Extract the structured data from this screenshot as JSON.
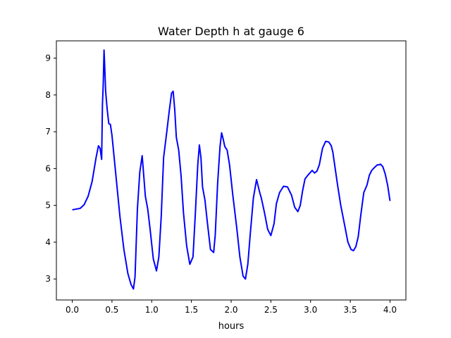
{
  "chart_data": {
    "type": "line",
    "title": "Water Depth h at gauge 6",
    "xlabel": "hours",
    "ylabel": "",
    "xlim": [
      -0.2,
      4.2
    ],
    "ylim": [
      2.43,
      9.47
    ],
    "grid": false,
    "legend": "none",
    "x_ticks": [
      0.0,
      0.5,
      1.0,
      1.5,
      2.0,
      2.5,
      3.0,
      3.5,
      4.0
    ],
    "x_tick_labels": [
      "0.0",
      "0.5",
      "1.0",
      "1.5",
      "2.0",
      "2.5",
      "3.0",
      "3.5",
      "4.0"
    ],
    "y_ticks": [
      3,
      4,
      5,
      6,
      7,
      8,
      9
    ],
    "y_tick_labels": [
      "3",
      "4",
      "5",
      "6",
      "7",
      "8",
      "9"
    ],
    "series": [
      {
        "color": "#0000ff",
        "x": [
          0.0,
          0.1,
          0.15,
          0.2,
          0.25,
          0.3,
          0.33,
          0.35,
          0.37,
          0.38,
          0.39,
          0.4,
          0.41,
          0.42,
          0.44,
          0.46,
          0.48,
          0.5,
          0.55,
          0.6,
          0.65,
          0.7,
          0.74,
          0.77,
          0.79,
          0.82,
          0.85,
          0.88,
          0.9,
          0.92,
          0.95,
          0.98,
          1.02,
          1.06,
          1.09,
          1.12,
          1.15,
          1.19,
          1.22,
          1.25,
          1.27,
          1.29,
          1.31,
          1.34,
          1.37,
          1.4,
          1.44,
          1.48,
          1.52,
          1.55,
          1.58,
          1.6,
          1.62,
          1.64,
          1.67,
          1.7,
          1.74,
          1.78,
          1.8,
          1.83,
          1.86,
          1.88,
          1.9,
          1.92,
          1.95,
          1.98,
          2.02,
          2.07,
          2.11,
          2.15,
          2.18,
          2.21,
          2.24,
          2.28,
          2.32,
          2.36,
          2.38,
          2.42,
          2.46,
          2.5,
          2.54,
          2.57,
          2.61,
          2.66,
          2.71,
          2.76,
          2.8,
          2.84,
          2.87,
          2.9,
          2.93,
          2.97,
          3.02,
          3.05,
          3.08,
          3.11,
          3.15,
          3.19,
          3.23,
          3.26,
          3.28,
          3.3,
          3.34,
          3.38,
          3.43,
          3.47,
          3.51,
          3.54,
          3.57,
          3.6,
          3.63,
          3.67,
          3.71,
          3.74,
          3.77,
          3.8,
          3.84,
          3.86,
          3.88,
          3.91,
          3.94,
          3.97,
          4.0
        ],
        "y": [
          4.88,
          4.92,
          5.02,
          5.25,
          5.65,
          6.3,
          6.62,
          6.55,
          6.25,
          7.75,
          8.3,
          9.22,
          8.7,
          8.1,
          7.6,
          7.22,
          7.2,
          6.9,
          5.8,
          4.7,
          3.8,
          3.15,
          2.85,
          2.73,
          3.05,
          4.9,
          5.9,
          6.35,
          5.8,
          5.25,
          4.9,
          4.35,
          3.55,
          3.22,
          3.6,
          4.7,
          6.3,
          7.0,
          7.55,
          8.05,
          8.1,
          7.6,
          6.85,
          6.5,
          5.8,
          4.8,
          3.9,
          3.4,
          3.6,
          4.8,
          6.1,
          6.64,
          6.3,
          5.5,
          5.15,
          4.55,
          3.8,
          3.72,
          4.2,
          5.6,
          6.6,
          6.97,
          6.8,
          6.6,
          6.5,
          6.1,
          5.3,
          4.4,
          3.6,
          3.08,
          3.0,
          3.4,
          4.2,
          5.2,
          5.7,
          5.35,
          5.2,
          4.8,
          4.35,
          4.18,
          4.5,
          5.05,
          5.35,
          5.52,
          5.5,
          5.28,
          4.95,
          4.83,
          5.0,
          5.4,
          5.72,
          5.83,
          5.95,
          5.88,
          5.93,
          6.1,
          6.55,
          6.74,
          6.72,
          6.62,
          6.45,
          6.15,
          5.55,
          5.0,
          4.45,
          4.0,
          3.8,
          3.77,
          3.88,
          4.15,
          4.7,
          5.35,
          5.55,
          5.82,
          5.95,
          6.02,
          6.1,
          6.1,
          6.12,
          6.05,
          5.85,
          5.55,
          5.12
        ]
      }
    ]
  }
}
